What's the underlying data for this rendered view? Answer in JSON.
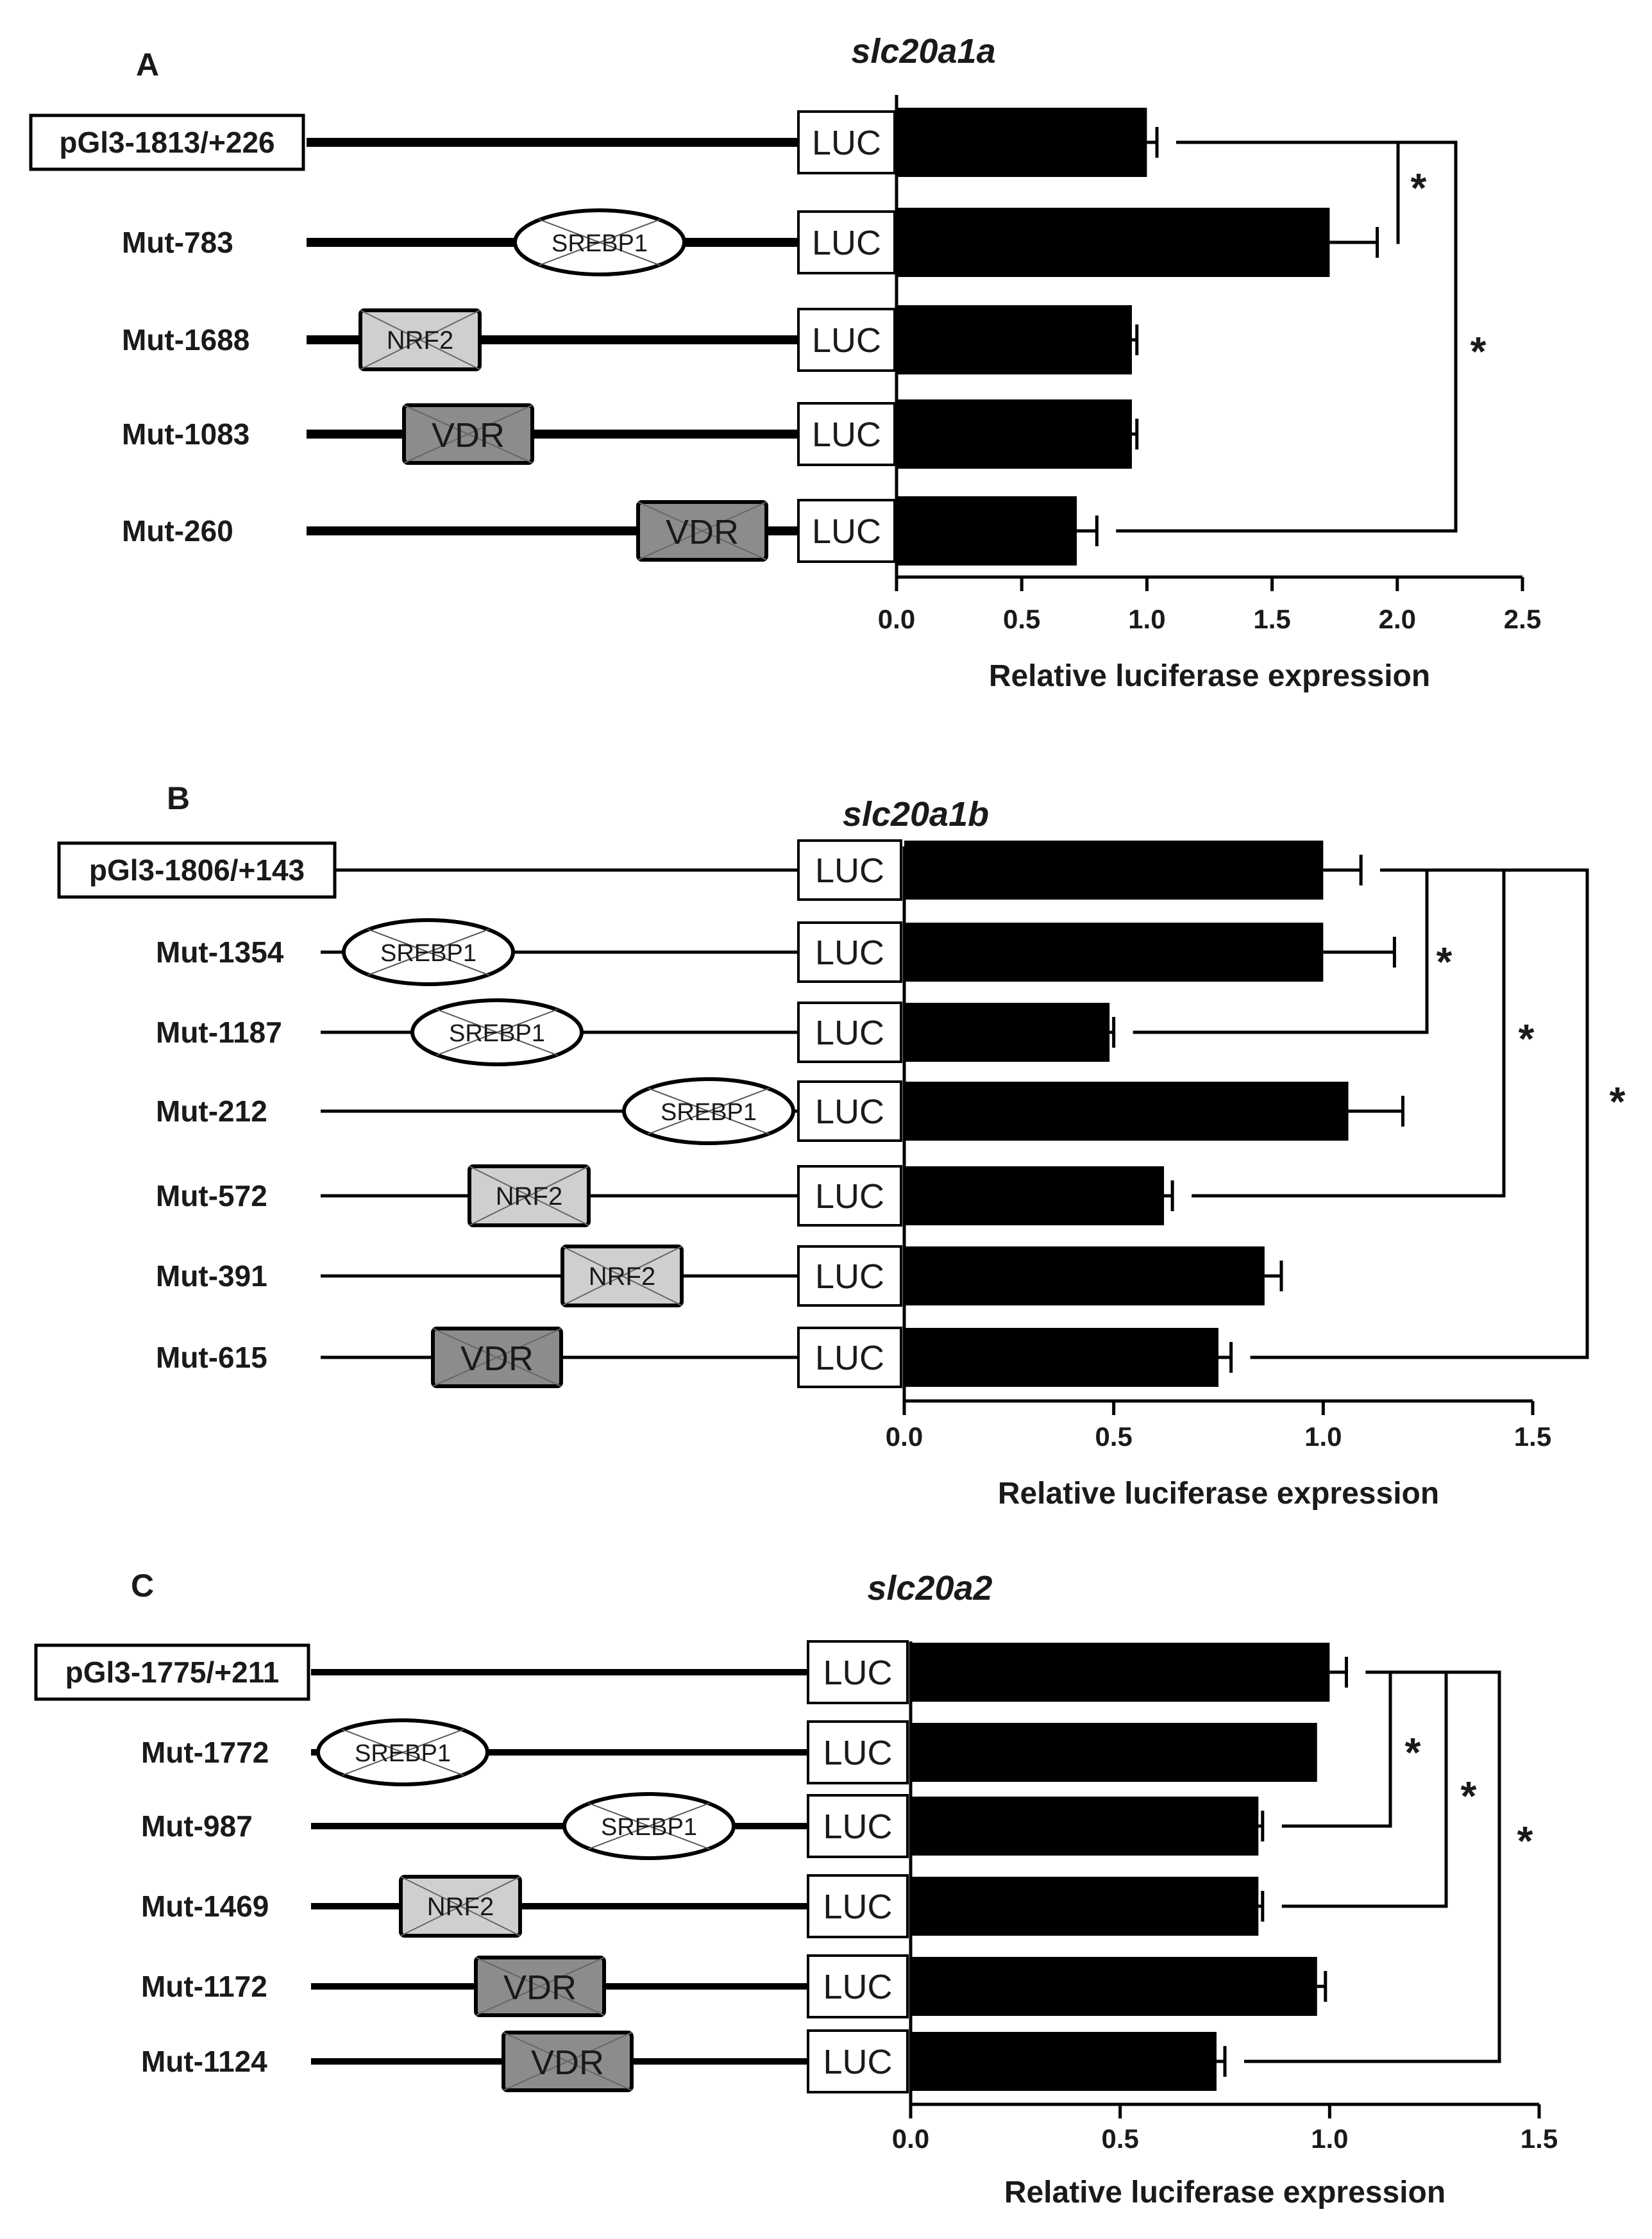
{
  "panels": [
    {
      "letter": "A",
      "title": "slc20a1a",
      "xlabel": "Relative luciferase expression",
      "luc_label": "LUC",
      "ticks": [
        "0.0",
        "0.5",
        "1.0",
        "1.5",
        "2.0",
        "2.5"
      ],
      "rows": [
        {
          "label": "pGl3-1813/+226",
          "boxed": true,
          "motifs": []
        },
        {
          "label": "Mut-783",
          "boxed": false,
          "motifs": [
            {
              "name": "SREBP1",
              "shape": "ellipse",
              "fill": "#ffffff"
            }
          ]
        },
        {
          "label": "Mut-1688",
          "boxed": false,
          "motifs": [
            {
              "name": "NRF2",
              "shape": "rect",
              "fill": "#cfcfcf"
            }
          ]
        },
        {
          "label": "Mut-1083",
          "boxed": false,
          "motifs": [
            {
              "name": "VDR",
              "shape": "rect",
              "fill": "#8c8c8c"
            }
          ]
        },
        {
          "label": "Mut-260",
          "boxed": false,
          "motifs": [
            {
              "name": "VDR",
              "shape": "rect",
              "fill": "#8c8c8c"
            }
          ]
        }
      ],
      "sig_marks": [
        "*",
        "*"
      ]
    },
    {
      "letter": "B",
      "title": "slc20a1b",
      "xlabel": "Relative luciferase expression",
      "luc_label": "LUC",
      "ticks": [
        "0.0",
        "0.5",
        "1.0",
        "1.5"
      ],
      "rows": [
        {
          "label": "pGl3-1806/+143",
          "boxed": true,
          "motifs": []
        },
        {
          "label": "Mut-1354",
          "boxed": false,
          "motifs": [
            {
              "name": "SREBP1",
              "shape": "ellipse",
              "fill": "#ffffff"
            }
          ]
        },
        {
          "label": "Mut-1187",
          "boxed": false,
          "motifs": [
            {
              "name": "SREBP1",
              "shape": "ellipse",
              "fill": "#ffffff"
            }
          ]
        },
        {
          "label": "Mut-212",
          "boxed": false,
          "motifs": [
            {
              "name": "SREBP1",
              "shape": "ellipse",
              "fill": "#ffffff"
            }
          ]
        },
        {
          "label": "Mut-572",
          "boxed": false,
          "motifs": [
            {
              "name": "NRF2",
              "shape": "rect",
              "fill": "#cfcfcf"
            }
          ]
        },
        {
          "label": "Mut-391",
          "boxed": false,
          "motifs": [
            {
              "name": "NRF2",
              "shape": "rect",
              "fill": "#cfcfcf"
            }
          ]
        },
        {
          "label": "Mut-615",
          "boxed": false,
          "motifs": [
            {
              "name": "VDR",
              "shape": "rect",
              "fill": "#8c8c8c"
            }
          ]
        }
      ],
      "sig_marks": [
        "*",
        "*",
        "*"
      ]
    },
    {
      "letter": "C",
      "title": "slc20a2",
      "xlabel": "Relative luciferase expression",
      "luc_label": "LUC",
      "ticks": [
        "0.0",
        "0.5",
        "1.0",
        "1.5"
      ],
      "rows": [
        {
          "label": "pGl3-1775/+211",
          "boxed": true,
          "motifs": []
        },
        {
          "label": "Mut-1772",
          "boxed": false,
          "motifs": [
            {
              "name": "SREBP1",
              "shape": "ellipse",
              "fill": "#ffffff"
            }
          ]
        },
        {
          "label": "Mut-987",
          "boxed": false,
          "motifs": [
            {
              "name": "SREBP1",
              "shape": "ellipse",
              "fill": "#ffffff"
            }
          ]
        },
        {
          "label": "Mut-1469",
          "boxed": false,
          "motifs": [
            {
              "name": "NRF2",
              "shape": "rect",
              "fill": "#cfcfcf"
            }
          ]
        },
        {
          "label": "Mut-1172",
          "boxed": false,
          "motifs": [
            {
              "name": "VDR",
              "shape": "rect",
              "fill": "#8c8c8c"
            }
          ]
        },
        {
          "label": "Mut-1124",
          "boxed": false,
          "motifs": [
            {
              "name": "VDR",
              "shape": "rect",
              "fill": "#8c8c8c"
            }
          ]
        }
      ],
      "sig_marks": [
        "*",
        "*",
        "*"
      ]
    }
  ],
  "chart_data": [
    {
      "type": "bar",
      "orientation": "horizontal",
      "title": "slc20a1a",
      "xlabel": "Relative luciferase expression",
      "xlim": [
        0,
        2.5
      ],
      "categories": [
        "pGl3-1813/+226",
        "Mut-783",
        "Mut-1688",
        "Mut-1083",
        "Mut-260"
      ],
      "values": [
        1.0,
        1.73,
        0.94,
        0.94,
        0.72
      ],
      "errors": [
        0.04,
        0.19,
        0.02,
        0.02,
        0.08
      ],
      "bar_color": "#000000",
      "comparisons": [
        {
          "rows": [
            0,
            1
          ],
          "mark": "*"
        },
        {
          "rows": [
            0,
            4
          ],
          "mark": "*"
        }
      ]
    },
    {
      "type": "bar",
      "orientation": "horizontal",
      "title": "slc20a1b",
      "xlabel": "Relative luciferase expression",
      "xlim": [
        0,
        1.5
      ],
      "categories": [
        "pGl3-1806/+143",
        "Mut-1354",
        "Mut-1187",
        "Mut-212",
        "Mut-572",
        "Mut-391",
        "Mut-615"
      ],
      "values": [
        1.0,
        1.0,
        0.49,
        1.06,
        0.62,
        0.86,
        0.75
      ],
      "errors": [
        0.09,
        0.17,
        0.01,
        0.13,
        0.02,
        0.04,
        0.03
      ],
      "bar_color": "#000000",
      "comparisons": [
        {
          "rows": [
            0,
            2
          ],
          "mark": "*"
        },
        {
          "rows": [
            0,
            4
          ],
          "mark": "*"
        },
        {
          "rows": [
            0,
            6
          ],
          "mark": "*"
        }
      ]
    },
    {
      "type": "bar",
      "orientation": "horizontal",
      "title": "slc20a2",
      "xlabel": "Relative luciferase expression",
      "xlim": [
        0,
        1.5
      ],
      "categories": [
        "pGl3-1775/+211",
        "Mut-1772",
        "Mut-987",
        "Mut-1469",
        "Mut-1172",
        "Mut-1124"
      ],
      "values": [
        1.0,
        0.97,
        0.83,
        0.83,
        0.97,
        0.73
      ],
      "errors": [
        0.04,
        0.0,
        0.01,
        0.01,
        0.02,
        0.02
      ],
      "bar_color": "#000000",
      "comparisons": [
        {
          "rows": [
            0,
            2
          ],
          "mark": "*"
        },
        {
          "rows": [
            0,
            3
          ],
          "mark": "*"
        },
        {
          "rows": [
            0,
            5
          ],
          "mark": "*"
        }
      ]
    }
  ]
}
